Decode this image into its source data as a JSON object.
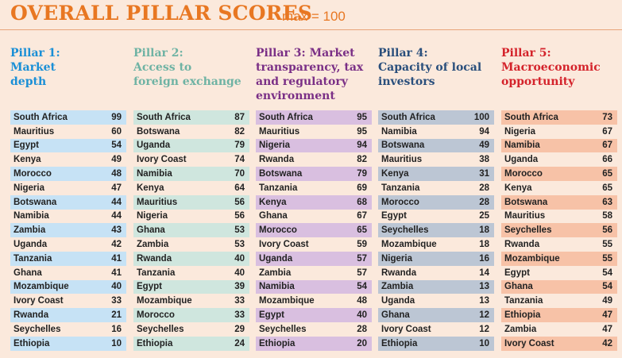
{
  "title": "OVERALL PILLAR SCORES",
  "subtitle": "max = 100",
  "colors": {
    "title": "#e87722",
    "background": "#fbe9dc"
  },
  "chart_data": {
    "type": "table",
    "pillars": [
      {
        "heading_lines": [
          "Pillar 1:",
          "Market",
          "depth"
        ],
        "color": "#1a8fd6",
        "shade": "#c6e2f5",
        "rows": [
          {
            "country": "South Africa",
            "score": 99
          },
          {
            "country": "Mauritius",
            "score": 60
          },
          {
            "country": "Egypt",
            "score": 54
          },
          {
            "country": "Kenya",
            "score": 49
          },
          {
            "country": "Morocco",
            "score": 48
          },
          {
            "country": "Nigeria",
            "score": 47
          },
          {
            "country": "Botswana",
            "score": 44
          },
          {
            "country": "Namibia",
            "score": 44
          },
          {
            "country": "Zambia",
            "score": 43
          },
          {
            "country": "Uganda",
            "score": 42
          },
          {
            "country": "Tanzania",
            "score": 41
          },
          {
            "country": "Ghana",
            "score": 41
          },
          {
            "country": "Mozambique",
            "score": 40
          },
          {
            "country": "Ivory Coast",
            "score": 33
          },
          {
            "country": "Rwanda",
            "score": 21
          },
          {
            "country": "Seychelles",
            "score": 16
          },
          {
            "country": "Ethiopia",
            "score": 10
          }
        ]
      },
      {
        "heading_lines": [
          "Pillar 2:",
          "Access to",
          "foreign exchange"
        ],
        "color": "#6fb3a4",
        "shade": "#cfe6de",
        "rows": [
          {
            "country": "South Africa",
            "score": 87
          },
          {
            "country": "Botswana",
            "score": 82
          },
          {
            "country": "Uganda",
            "score": 79
          },
          {
            "country": "Ivory Coast",
            "score": 74
          },
          {
            "country": "Namibia",
            "score": 70
          },
          {
            "country": "Kenya",
            "score": 64
          },
          {
            "country": "Mauritius",
            "score": 56
          },
          {
            "country": "Nigeria",
            "score": 56
          },
          {
            "country": "Ghana",
            "score": 53
          },
          {
            "country": "Zambia",
            "score": 53
          },
          {
            "country": "Rwanda",
            "score": 40
          },
          {
            "country": "Tanzania",
            "score": 40
          },
          {
            "country": "Egypt",
            "score": 39
          },
          {
            "country": "Mozambique",
            "score": 33
          },
          {
            "country": "Morocco",
            "score": 33
          },
          {
            "country": "Seychelles",
            "score": 29
          },
          {
            "country": "Ethiopia",
            "score": 24
          }
        ]
      },
      {
        "heading_lines": [
          "Pillar 3: Market",
          "transparency, tax",
          "and regulatory",
          "environment"
        ],
        "color": "#7a2f86",
        "shade": "#d9bfe0",
        "rows": [
          {
            "country": "South Africa",
            "score": 95
          },
          {
            "country": "Mauritius",
            "score": 95
          },
          {
            "country": "Nigeria",
            "score": 94
          },
          {
            "country": "Rwanda",
            "score": 82
          },
          {
            "country": "Botswana",
            "score": 79
          },
          {
            "country": "Tanzania",
            "score": 69
          },
          {
            "country": "Kenya",
            "score": 68
          },
          {
            "country": "Ghana",
            "score": 67
          },
          {
            "country": "Morocco",
            "score": 65
          },
          {
            "country": "Ivory Coast",
            "score": 59
          },
          {
            "country": "Uganda",
            "score": 57
          },
          {
            "country": "Zambia",
            "score": 57
          },
          {
            "country": "Namibia",
            "score": 54
          },
          {
            "country": "Mozambique",
            "score": 48
          },
          {
            "country": "Egypt",
            "score": 40
          },
          {
            "country": "Seychelles",
            "score": 28
          },
          {
            "country": "Ethiopia",
            "score": 20
          }
        ]
      },
      {
        "heading_lines": [
          "Pillar 4:",
          "Capacity of local",
          "investors"
        ],
        "color": "#2a4f7c",
        "shade": "#bcc6d4",
        "rows": [
          {
            "country": "South Africa",
            "score": 100
          },
          {
            "country": "Namibia",
            "score": 94
          },
          {
            "country": "Botswana",
            "score": 49
          },
          {
            "country": "Mauritius",
            "score": 38
          },
          {
            "country": "Kenya",
            "score": 31
          },
          {
            "country": "Tanzania",
            "score": 28
          },
          {
            "country": "Morocco",
            "score": 28
          },
          {
            "country": "Egypt",
            "score": 25
          },
          {
            "country": "Seychelles",
            "score": 18
          },
          {
            "country": "Mozambique",
            "score": 18
          },
          {
            "country": "Nigeria",
            "score": 16
          },
          {
            "country": "Rwanda",
            "score": 14
          },
          {
            "country": "Zambia",
            "score": 13
          },
          {
            "country": "Uganda",
            "score": 13
          },
          {
            "country": "Ghana",
            "score": 12
          },
          {
            "country": "Ivory Coast",
            "score": 12
          },
          {
            "country": "Ethiopia",
            "score": 10
          }
        ]
      },
      {
        "heading_lines": [
          "Pillar 5:",
          "Macroeconomic",
          "opportunity"
        ],
        "color": "#d4232b",
        "shade": "#f7c2a7",
        "rows": [
          {
            "country": "South Africa",
            "score": 73
          },
          {
            "country": "Nigeria",
            "score": 67
          },
          {
            "country": "Namibia",
            "score": 67
          },
          {
            "country": "Uganda",
            "score": 66
          },
          {
            "country": "Morocco",
            "score": 65
          },
          {
            "country": "Kenya",
            "score": 65
          },
          {
            "country": "Botswana",
            "score": 63
          },
          {
            "country": "Mauritius",
            "score": 58
          },
          {
            "country": "Seychelles",
            "score": 56
          },
          {
            "country": "Rwanda",
            "score": 55
          },
          {
            "country": "Mozambique",
            "score": 55
          },
          {
            "country": "Egypt",
            "score": 54
          },
          {
            "country": "Ghana",
            "score": 54
          },
          {
            "country": "Tanzania",
            "score": 49
          },
          {
            "country": "Ethiopia",
            "score": 47
          },
          {
            "country": "Zambia",
            "score": 47
          },
          {
            "country": "Ivory Coast",
            "score": 42
          }
        ]
      }
    ]
  }
}
